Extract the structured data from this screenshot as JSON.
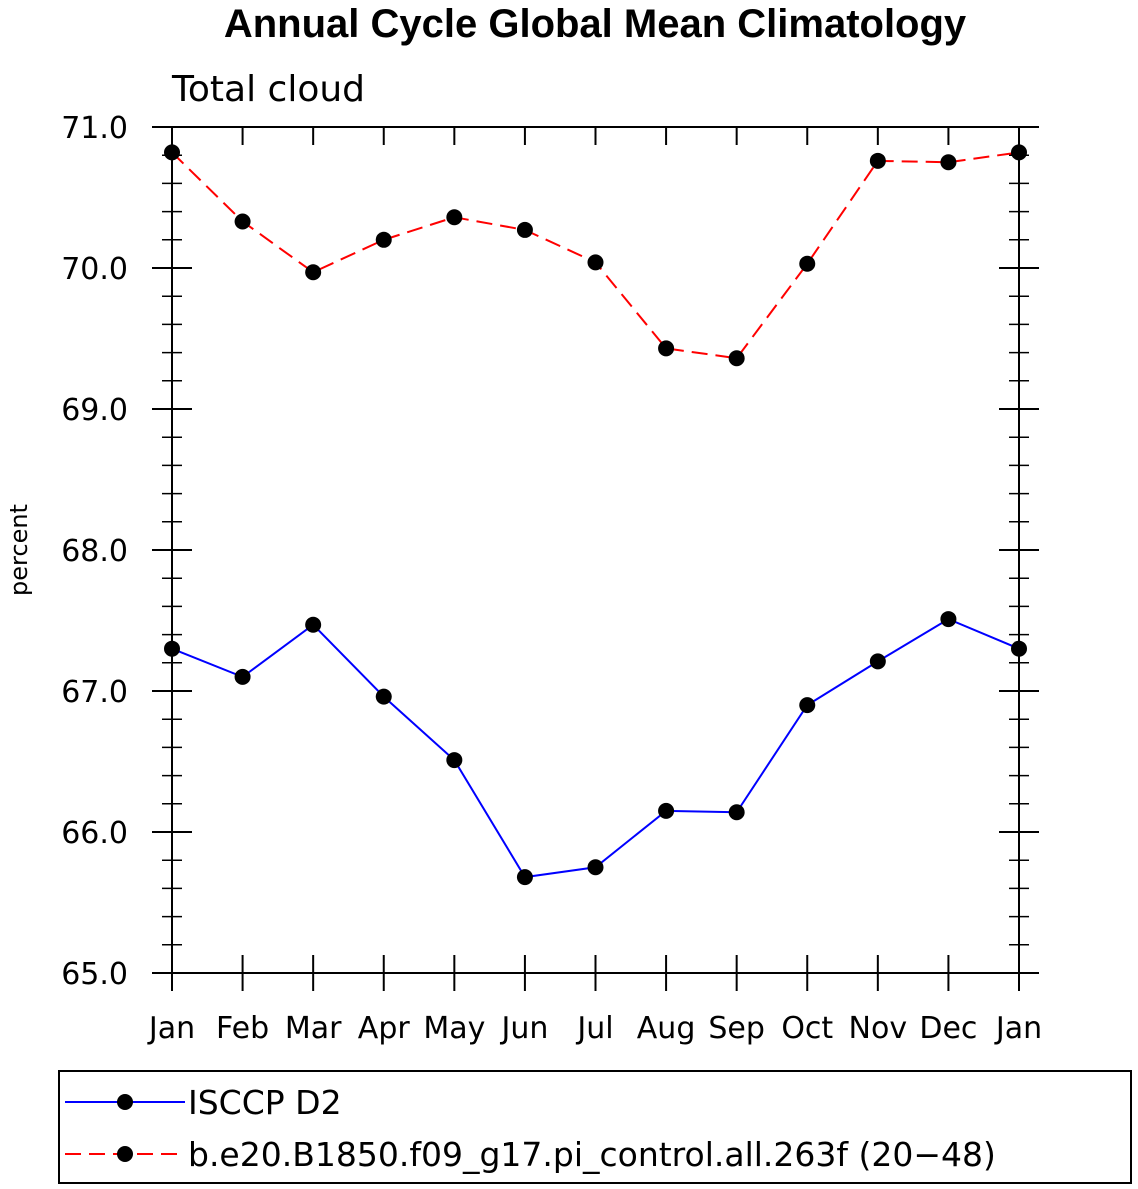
{
  "chart_data": {
    "type": "line",
    "title": "Annual Cycle Global Mean Climatology",
    "subtitle": "Total cloud",
    "xlabel": "",
    "ylabel": "percent",
    "categories": [
      "Jan",
      "Feb",
      "Mar",
      "Apr",
      "May",
      "Jun",
      "Jul",
      "Aug",
      "Sep",
      "Oct",
      "Nov",
      "Dec",
      "Jan"
    ],
    "ylim": [
      65.0,
      71.0
    ],
    "yticks": [
      "65.0",
      "66.0",
      "67.0",
      "68.0",
      "69.0",
      "70.0",
      "71.0"
    ],
    "grid": false,
    "legend_position": "bottom",
    "series": [
      {
        "name": "ISCCP D2",
        "color": "#0000ff",
        "line_style": "solid",
        "marker": "filled-circle",
        "values": [
          67.3,
          67.1,
          67.47,
          66.96,
          66.51,
          65.68,
          65.75,
          66.15,
          66.14,
          66.9,
          67.21,
          67.51,
          67.3
        ]
      },
      {
        "name": "b.e20.B1850.f09_g17.pi_control.all.263f (20−48)",
        "color": "#ff0000",
        "line_style": "dashed",
        "marker": "filled-circle",
        "values": [
          70.82,
          70.33,
          69.97,
          70.2,
          70.36,
          70.27,
          70.04,
          69.43,
          69.36,
          70.03,
          70.76,
          70.75,
          70.82
        ]
      }
    ]
  }
}
